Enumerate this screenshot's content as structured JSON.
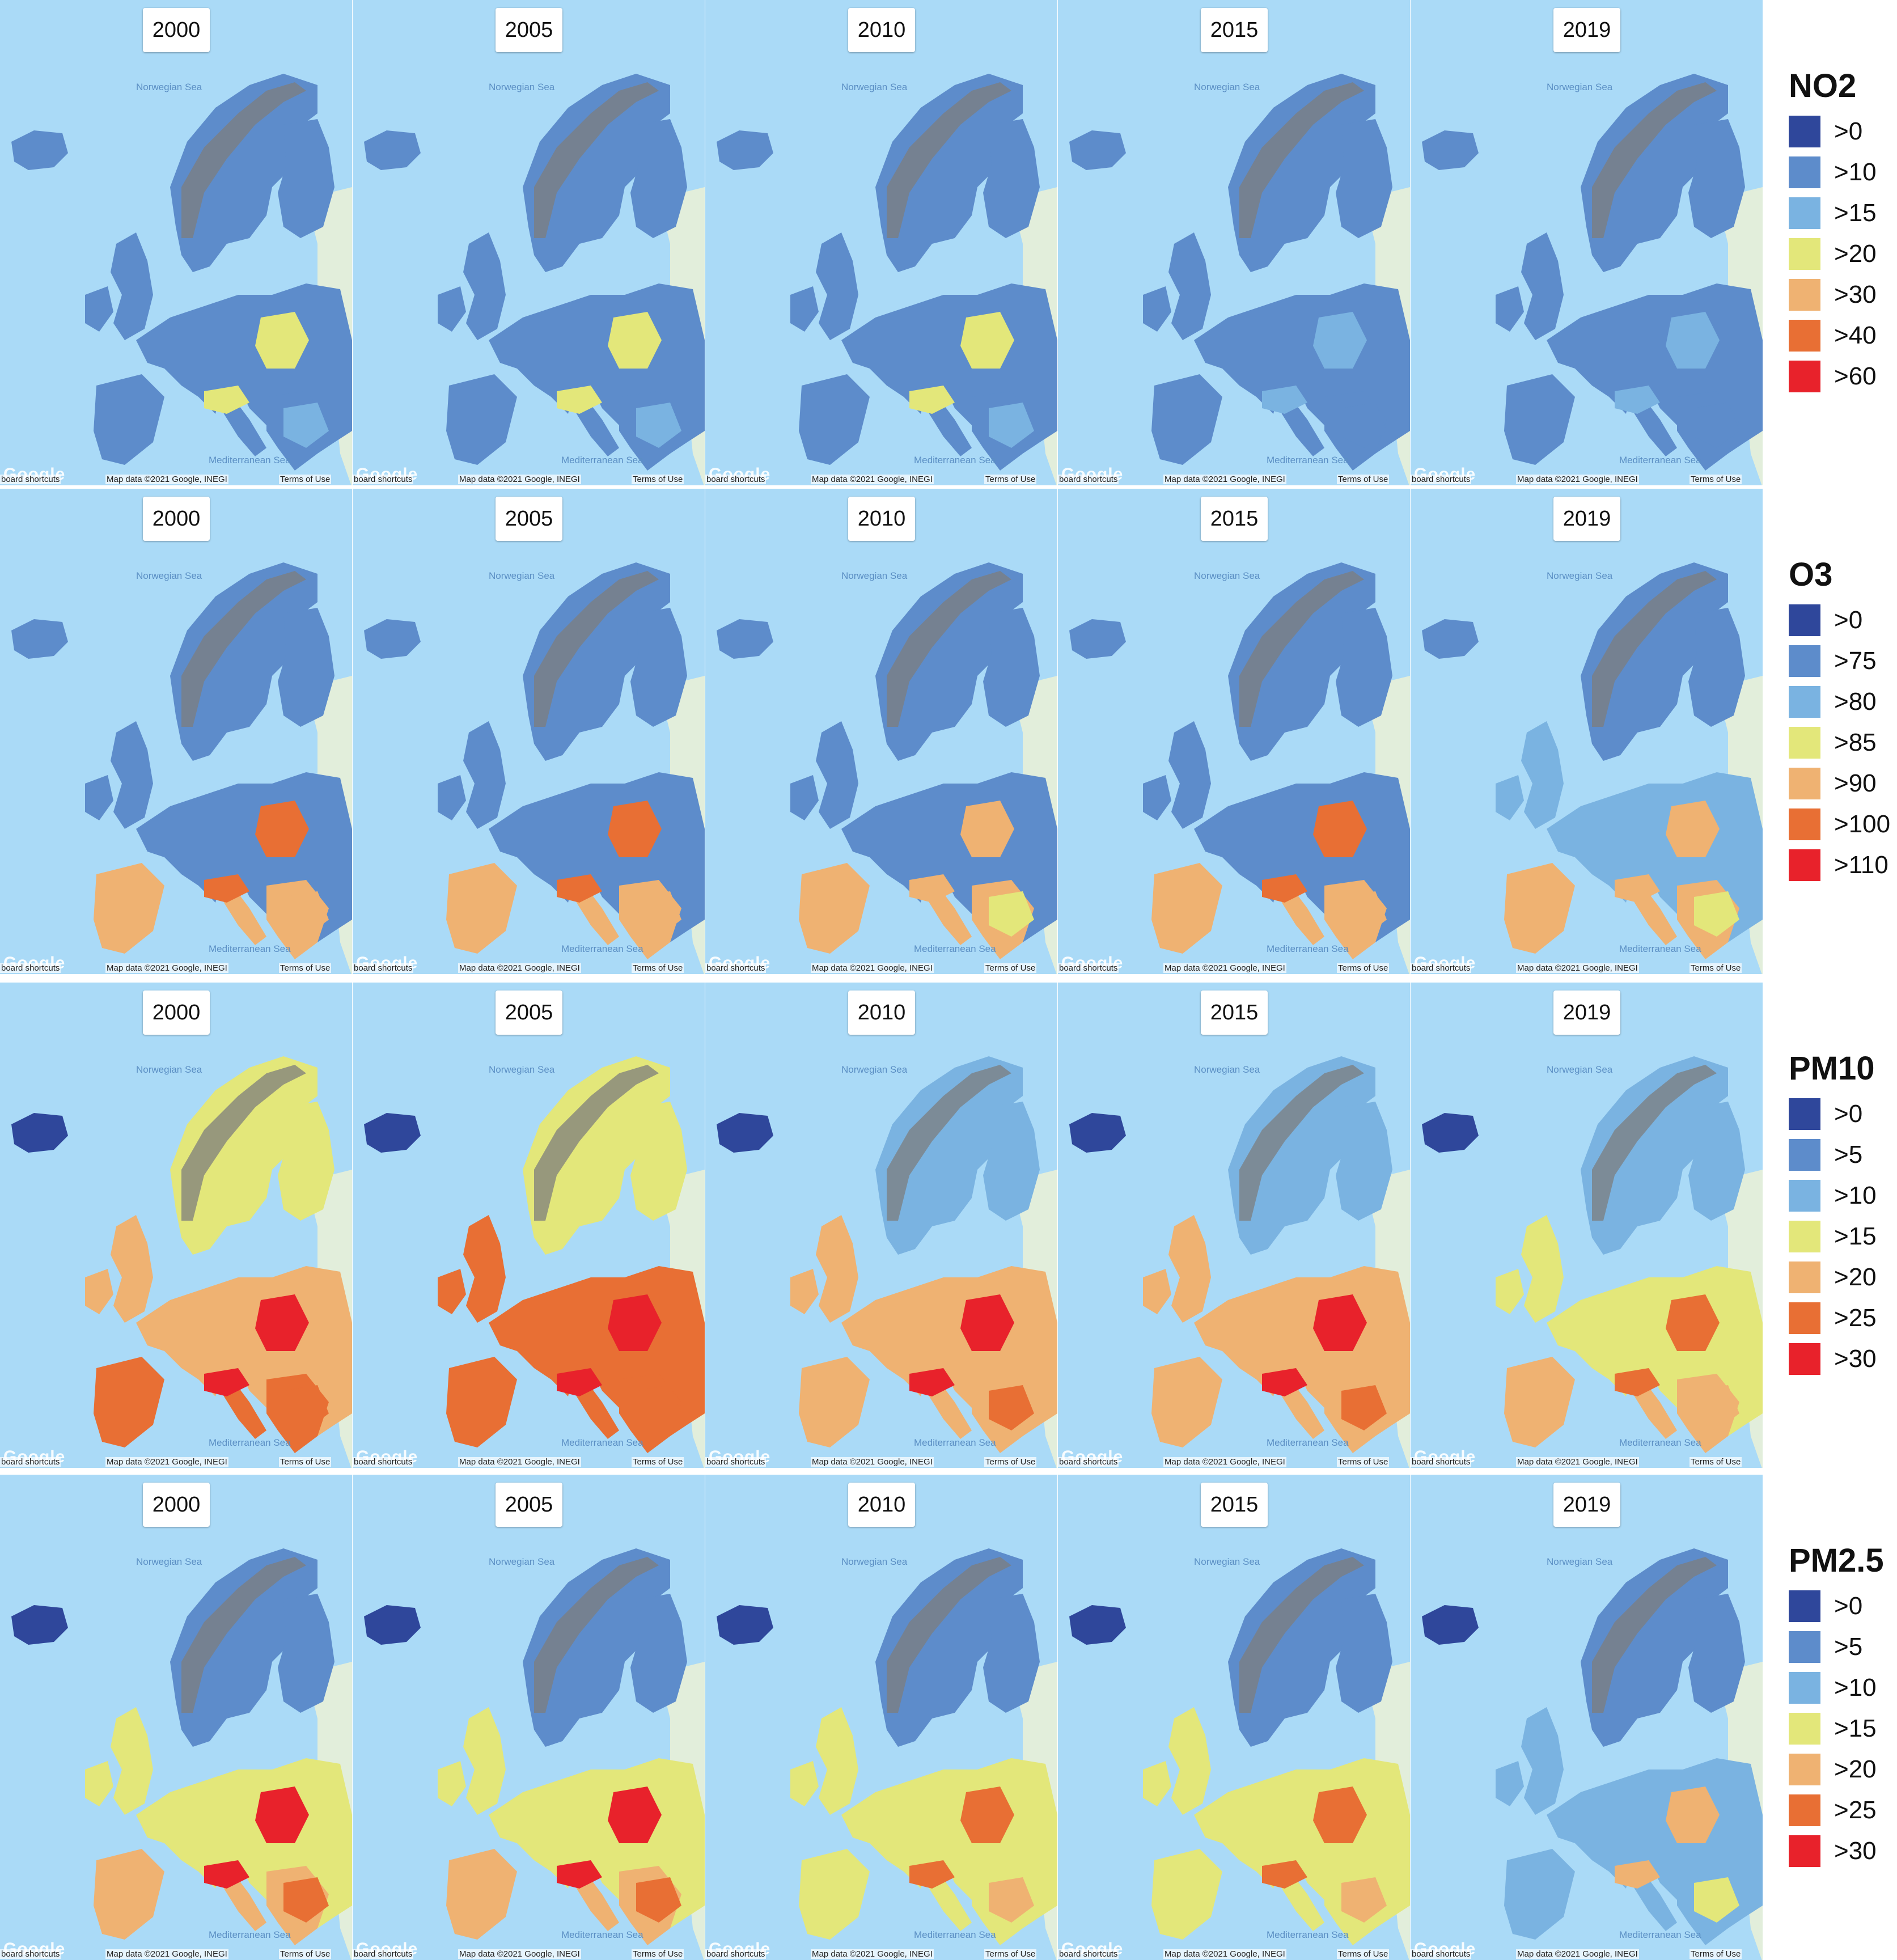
{
  "attribution": {
    "keyboard": "board shortcuts",
    "map_data": "Map data ©2021 Google, INEGI",
    "terms": "Terms of Use",
    "logo": "Google"
  },
  "sea_labels": {
    "north": "Norwegian Sea",
    "med": "Mediterranean Sea"
  },
  "colors": {
    "sea": "#aadaf7",
    "land_outside": "#e2eedb",
    "mountains": "#7d7d7d"
  },
  "rows": [
    {
      "pollutant": "NO2",
      "years": [
        "2000",
        "2005",
        "2010",
        "2015",
        "2019"
      ],
      "legend": [
        {
          "label": ">0",
          "color": "#2f479b"
        },
        {
          "label": ">10",
          "color": "#5d8ccb"
        },
        {
          "label": ">15",
          "color": "#7ab3e1"
        },
        {
          "label": ">20",
          "color": "#e3e77a"
        },
        {
          "label": ">30",
          "color": "#efb272"
        },
        {
          "label": ">40",
          "color": "#e86f34"
        },
        {
          "label": ">60",
          "color": "#e8222b"
        }
      ]
    },
    {
      "pollutant": "O3",
      "years": [
        "2000",
        "2005",
        "2010",
        "2015",
        "2019"
      ],
      "legend": [
        {
          "label": ">0",
          "color": "#2f479b"
        },
        {
          "label": ">75",
          "color": "#5d8ccb"
        },
        {
          "label": ">80",
          "color": "#7ab3e1"
        },
        {
          "label": ">85",
          "color": "#e3e77a"
        },
        {
          "label": ">90",
          "color": "#efb272"
        },
        {
          "label": ">100",
          "color": "#e86f34"
        },
        {
          "label": ">110",
          "color": "#e8222b"
        }
      ]
    },
    {
      "pollutant": "PM10",
      "years": [
        "2000",
        "2005",
        "2010",
        "2015",
        "2019"
      ],
      "legend": [
        {
          "label": ">0",
          "color": "#2f479b"
        },
        {
          "label": ">5",
          "color": "#5d8ccb"
        },
        {
          "label": ">10",
          "color": "#7ab3e1"
        },
        {
          "label": ">15",
          "color": "#e3e77a"
        },
        {
          "label": ">20",
          "color": "#efb272"
        },
        {
          "label": ">25",
          "color": "#e86f34"
        },
        {
          "label": ">30",
          "color": "#e8222b"
        }
      ]
    },
    {
      "pollutant": "PM2.5",
      "years": [
        "2000",
        "2005",
        "2010",
        "2015",
        "2019"
      ],
      "legend": [
        {
          "label": ">0",
          "color": "#2f479b"
        },
        {
          "label": ">5",
          "color": "#5d8ccb"
        },
        {
          "label": ">10",
          "color": "#7ab3e1"
        },
        {
          "label": ">15",
          "color": "#e3e77a"
        },
        {
          "label": ">20",
          "color": "#efb272"
        },
        {
          "label": ">25",
          "color": "#e86f34"
        },
        {
          "label": ">30",
          "color": "#e8222b"
        }
      ]
    }
  ],
  "map_fill": {
    "NO2": [
      {
        "north": 1,
        "central": 1,
        "south": 1,
        "hot": 3
      },
      {
        "north": 1,
        "central": 1,
        "south": 1,
        "hot": 3
      },
      {
        "north": 1,
        "central": 1,
        "south": 1,
        "hot": 3
      },
      {
        "north": 1,
        "central": 1,
        "south": 1,
        "hot": 2
      },
      {
        "north": 1,
        "central": 1,
        "south": 1,
        "hot": 2
      }
    ],
    "O3": [
      {
        "north": 1,
        "central": 1,
        "south": 4,
        "hot": 5
      },
      {
        "north": 1,
        "central": 1,
        "south": 4,
        "hot": 5
      },
      {
        "north": 1,
        "central": 1,
        "south": 4,
        "hot": 4
      },
      {
        "north": 1,
        "central": 1,
        "south": 4,
        "hot": 5
      },
      {
        "north": 1,
        "central": 2,
        "south": 4,
        "hot": 4
      }
    ],
    "PM10": [
      {
        "north": 3,
        "central": 4,
        "south": 5,
        "hot": 6
      },
      {
        "north": 3,
        "central": 5,
        "south": 5,
        "hot": 6
      },
      {
        "north": 2,
        "central": 4,
        "south": 4,
        "hot": 6
      },
      {
        "north": 2,
        "central": 4,
        "south": 4,
        "hot": 6
      },
      {
        "north": 2,
        "central": 3,
        "south": 4,
        "hot": 5
      }
    ],
    "PM2.5": [
      {
        "north": 1,
        "central": 3,
        "south": 4,
        "hot": 6
      },
      {
        "north": 1,
        "central": 3,
        "south": 4,
        "hot": 6
      },
      {
        "north": 1,
        "central": 3,
        "south": 3,
        "hot": 5
      },
      {
        "north": 1,
        "central": 3,
        "south": 3,
        "hot": 5
      },
      {
        "north": 1,
        "central": 2,
        "south": 2,
        "hot": 4
      }
    ]
  }
}
